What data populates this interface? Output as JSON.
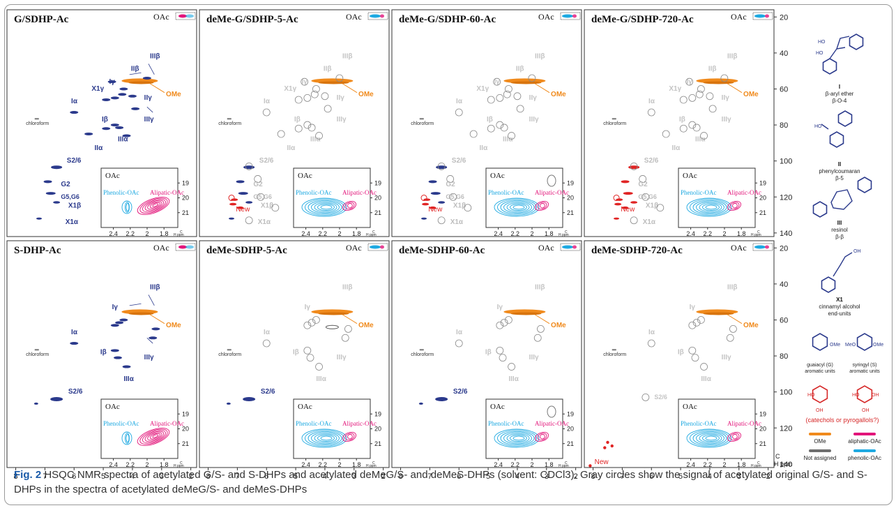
{
  "figure": {
    "caption_label": "Fig. 2",
    "caption_text": "HSQC NMR spectra of acetylated G/S- and S-DHPs and acetylated deMeG/S- and deMeS-DHPs (solvent: CDCl3). Gray circles show the signal of acetylated original G/S- and S-DHPs in the spectra of acetylated deMeG/S- and deMeS-DHPs"
  },
  "chart_data": {
    "type": "scatter",
    "description_axis": {
      "xlabel": "H ppm",
      "ylabel": "C ppm",
      "x_ticks": [
        8,
        7,
        6,
        5,
        4,
        3,
        2
      ],
      "y_ticks": [
        20,
        40,
        60,
        80,
        100,
        120,
        140
      ],
      "inset_x_ticks": [
        2.4,
        2.2,
        2.0,
        1.8
      ],
      "inset_y_ticks": [
        19,
        20,
        21
      ],
      "inset_xlabel": "H ppm",
      "inset_ylabel": "C ppm"
    },
    "panels": [
      {
        "title": "G/SDHP-Ac",
        "row": 0,
        "col": 0,
        "variant": "orig-g",
        "labels": [
          "IIIβ",
          "IIβ",
          "Iγ",
          "X1γ",
          "IIγ",
          "IIIγ",
          "Iα",
          "Iβ",
          "IIIα",
          "IIα",
          "S2/6",
          "G2",
          "G5,G6",
          "X1β",
          "X1α",
          "OMe",
          "chloroform",
          "New"
        ],
        "inset": {
          "title": "OAc",
          "left": "Phenolic-OAc",
          "right": "Alipatic-OAc"
        }
      },
      {
        "title": "deMe-G/SDHP-5-Ac",
        "row": 0,
        "col": 1,
        "variant": "deme-g-5"
      },
      {
        "title": "deMe-G/SDHP-60-Ac",
        "row": 0,
        "col": 2,
        "variant": "deme-g-60"
      },
      {
        "title": "deMe-G/SDHP-720-Ac",
        "row": 0,
        "col": 3,
        "variant": "deme-g-720"
      },
      {
        "title": "S-DHP-Ac",
        "row": 1,
        "col": 0,
        "variant": "orig-s"
      },
      {
        "title": "deMe-SDHP-5-Ac",
        "row": 1,
        "col": 1,
        "variant": "deme-s-5"
      },
      {
        "title": "deMe-SDHP-60-Ac",
        "row": 1,
        "col": 2,
        "variant": "deme-s-60"
      },
      {
        "title": "deMe-SDHP-720-Ac",
        "row": 1,
        "col": 3,
        "variant": "deme-s-720"
      }
    ],
    "signals_h_c": [
      {
        "label": "OMe",
        "h": 3.75,
        "c": 55.8
      },
      {
        "label": "S2/6",
        "h": 6.6,
        "c": 104
      },
      {
        "label": "G2",
        "h": 6.9,
        "c": 111
      },
      {
        "label": "G5,G6",
        "h": 6.8,
        "c": 118
      },
      {
        "label": "X1β",
        "h": 6.2,
        "c": 128
      },
      {
        "label": "X1α",
        "h": 6.6,
        "c": 133
      },
      {
        "label": "Iα",
        "h": 6.0,
        "c": 74
      },
      {
        "label": "Iβ",
        "h": 4.6,
        "c": 81
      },
      {
        "label": "Iγ",
        "h": 4.2,
        "c": 62
      },
      {
        "label": "IIβ",
        "h": 3.65,
        "c": 50
      },
      {
        "label": "IIγ",
        "h": 4.3,
        "c": 63
      },
      {
        "label": "IIα",
        "h": 5.5,
        "c": 88
      },
      {
        "label": "IIIβ",
        "h": 3.1,
        "c": 54
      },
      {
        "label": "IIIγ",
        "h": 3.9,
        "c": 71
      },
      {
        "label": "IIIα",
        "h": 4.7,
        "c": 86
      },
      {
        "label": "X1γ",
        "h": 4.7,
        "c": 65
      },
      {
        "label": "chloroform",
        "h": 7.26,
        "c": 77
      }
    ],
    "oac_inset": {
      "title": "OAc",
      "phenolic_label": "Phenolic-OAc",
      "aliphatic_label": "Alipatic-OAc"
    },
    "legend": [
      {
        "name": "OMe",
        "color": "#f08a1c"
      },
      {
        "name": "aliphatic-OAc",
        "color": "#e2157a"
      },
      {
        "name": "Not assigned",
        "color": "#6e6e6e"
      },
      {
        "name": "phenolic-OAc",
        "color": "#1ea9e1"
      }
    ],
    "colors": {
      "guaiacyl": "#2b3a8c",
      "faded": "#bdbdbd",
      "new": "#e02424",
      "ome": "#f08a1c",
      "aliphatic": "#e2157a",
      "phenolic": "#1ea9e1",
      "unassigned": "#6e6e6e"
    }
  },
  "structures": [
    {
      "name": "I",
      "line1": "β-aryl ether",
      "line2": "β-O-4"
    },
    {
      "name": "II",
      "line1": "phenylcoumaran",
      "line2": "β-5"
    },
    {
      "name": "III",
      "line1": "resinol",
      "line2": "β-β"
    },
    {
      "name": "X1",
      "line1": "cinnamyl alcohol",
      "line2": "end-units"
    },
    {
      "name": "guaiacyl (G)",
      "line1": "aromatic units"
    },
    {
      "name": "syringyl (S)",
      "line1": "aromatic units"
    },
    {
      "name": "(catechols or pyrogallols?)"
    }
  ]
}
